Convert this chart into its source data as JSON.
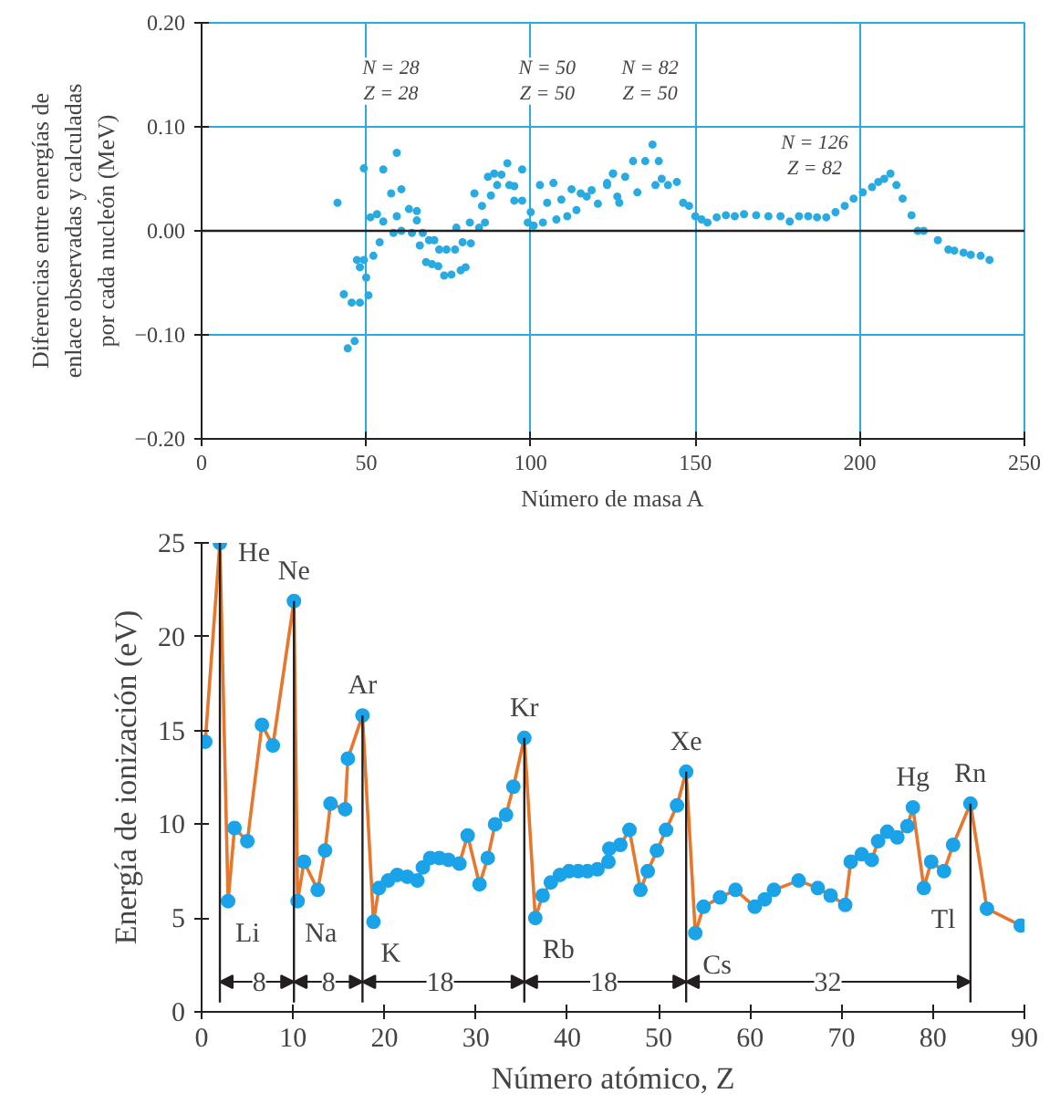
{
  "chart_data": [
    {
      "type": "scatter",
      "xlabel": "Número de masa A",
      "ylabel": "Diferencias entre energías de\nenlace observadas y calculadas\npor cada nucleón (MeV)",
      "xlim": [
        0,
        250
      ],
      "ylim": [
        -0.2,
        0.2
      ],
      "xticks": [
        0,
        50,
        100,
        150,
        200,
        250
      ],
      "yticks": [
        {
          "value": 0.2,
          "label": "0.20"
        },
        {
          "value": 0.1,
          "label": "0.10"
        },
        {
          "value": 0,
          "label": "0.00"
        },
        {
          "value": -0.1,
          "label": "−0.10"
        },
        {
          "value": -0.2,
          "label": "−0.20"
        }
      ],
      "grid": true,
      "marker": "circle",
      "ref_lines": [
        {
          "axis": "y",
          "value": 0,
          "color": "#231f20"
        }
      ],
      "annotations": [
        "N = 28\nZ = 28",
        "N = 50\nZ = 50",
        "N = 82\nZ = 50",
        "N = 126\nZ = 82"
      ],
      "series": [
        {
          "color": "#29abe2",
          "x": [
            41.3,
            43.2,
            44.4,
            45.6,
            46.5,
            47.2,
            48.1,
            48.1,
            49.3,
            49.3,
            50,
            50.7,
            51.3,
            52.2,
            53.3,
            54.1,
            55.2,
            55.2,
            57.6,
            58.3,
            59.3,
            59.3,
            60.7,
            60.7,
            63,
            63.9,
            65.4,
            65.4,
            66.3,
            67.2,
            68.2,
            69.1,
            70,
            70.7,
            71.9,
            72.2,
            73.7,
            74.4,
            75.9,
            77,
            77.4,
            78.7,
            79.3,
            80.2,
            81.5,
            81.8,
            82.9,
            84.3,
            85.2,
            86.1,
            87,
            87.9,
            88.9,
            89.8,
            91.1,
            92.9,
            93.5,
            95,
            95,
            97.4,
            97.4,
            99.1,
            100,
            100.9,
            102.8,
            103.7,
            105,
            106.9,
            107.8,
            109.3,
            111.1,
            112.4,
            113.9,
            115.2,
            117,
            118.5,
            120.4,
            123.2,
            125,
            126.3,
            123.2,
            125,
            126.9,
            128.7,
            131.1,
            132.4,
            134.8,
            137,
            137.9,
            138.9,
            139.8,
            141.7,
            144.4,
            146.3,
            148.1,
            150,
            151.9,
            153.7,
            156.5,
            159.3,
            162,
            164.8,
            168.5,
            172.2,
            175.9,
            178.7,
            181.5,
            184.3,
            187,
            189.8,
            192.6,
            195.4,
            198.1,
            200.9,
            203.7,
            205.6,
            207.4,
            209.3,
            211.1,
            213,
            215.7,
            217.6,
            219.4,
            223.7,
            226.9,
            228.7,
            231.5,
            233.7,
            236.7,
            239.4
          ],
          "values": [
            0.027,
            -0.061,
            -0.113,
            -0.069,
            -0.106,
            -0.028,
            -0.069,
            -0.035,
            0.06,
            -0.028,
            -0.045,
            -0.062,
            0.013,
            -0.024,
            0.016,
            -0.011,
            0.009,
            0.059,
            0.036,
            -0.002,
            0.075,
            0.014,
            0.04,
            0,
            0.021,
            -0.002,
            0.019,
            0.01,
            -0.014,
            -0.002,
            -0.03,
            -0.009,
            -0.032,
            -0.009,
            -0.034,
            -0.018,
            -0.043,
            -0.018,
            -0.042,
            -0.018,
            0.003,
            -0.038,
            -0.011,
            -0.035,
            0.008,
            -0.012,
            0.036,
            0.003,
            0.024,
            0.008,
            0.052,
            0.034,
            0.055,
            0.044,
            0.054,
            0.065,
            0.044,
            0.029,
            0.043,
            0.059,
            0.029,
            0.008,
            0.018,
            0.005,
            0.044,
            0.008,
            0.027,
            0.046,
            0.011,
            0.03,
            0.014,
            0.04,
            0.02,
            0.036,
            0.033,
            0.039,
            0.026,
            0.046,
            0.055,
            0.033,
            0.044,
            0.055,
            0.027,
            0.052,
            0.067,
            0.037,
            0.067,
            0.083,
            0.044,
            0.067,
            0.05,
            0.044,
            0.047,
            0.027,
            0.024,
            0.014,
            0.011,
            0.008,
            0.013,
            0.015,
            0.014,
            0.016,
            0.015,
            0.014,
            0.014,
            0.009,
            0.014,
            0.014,
            0.013,
            0.013,
            0.018,
            0.024,
            0.031,
            0.037,
            0.042,
            0.047,
            0.05,
            0.055,
            0.044,
            0.031,
            0.015,
            0,
            0,
            -0.009,
            -0.018,
            -0.019,
            -0.021,
            -0.023,
            -0.024,
            -0.028
          ]
        }
      ]
    },
    {
      "type": "line",
      "xlabel": "Número atómico, Z",
      "ylabel": "Energía de ionización (eV)",
      "xlim": [
        0,
        90
      ],
      "ylim": [
        0,
        25
      ],
      "xticks": [
        0,
        10,
        20,
        30,
        40,
        50,
        60,
        70,
        80,
        90
      ],
      "yticks": [
        0,
        5,
        10,
        15,
        20,
        25
      ],
      "marker": "circle",
      "line_style": "solid",
      "ref_lines": [
        {
          "axis": "x",
          "value": 2.0
        },
        {
          "axis": "x",
          "value": 10.1
        },
        {
          "axis": "x",
          "value": 17.6
        },
        {
          "axis": "x",
          "value": 35.3
        },
        {
          "axis": "x",
          "value": 53.0
        },
        {
          "axis": "x",
          "value": 84.1
        }
      ],
      "annotations": [
        {
          "text": "8",
          "x": 6.3,
          "y": 1.6
        },
        {
          "text": "8",
          "x": 13.9,
          "y": 1.6
        },
        {
          "text": "18",
          "x": 26.1,
          "y": 1.6
        },
        {
          "text": "18",
          "x": 44.0,
          "y": 1.6
        },
        {
          "text": "32",
          "x": 68.5,
          "y": 1.6
        },
        {
          "text": "He",
          "x": 2.0,
          "y": 25.0
        },
        {
          "text": "Ne",
          "x": 10.1,
          "y": 21.9
        },
        {
          "text": "Ar",
          "x": 17.6,
          "y": 15.8
        },
        {
          "text": "Kr",
          "x": 35.3,
          "y": 14.6
        },
        {
          "text": "Xe",
          "x": 53.0,
          "y": 12.8
        },
        {
          "text": "Hg",
          "x": 77.8,
          "y": 10.9
        },
        {
          "text": "Rn",
          "x": 84.1,
          "y": 11.1
        },
        {
          "text": "Li",
          "x": 2.9,
          "y": 5.9
        },
        {
          "text": "Na",
          "x": 10.5,
          "y": 5.9
        },
        {
          "text": "K",
          "x": 18.8,
          "y": 4.8
        },
        {
          "text": "Rb",
          "x": 36.5,
          "y": 5.0
        },
        {
          "text": "Cs",
          "x": 54.0,
          "y": 4.2
        },
        {
          "text": "Tl",
          "x": 79.0,
          "y": 6.6
        }
      ],
      "series": [
        {
          "color": "#e8772e",
          "x": [
            0.4,
            2.0,
            2.9,
            3.6,
            5.0,
            6.6,
            7.8,
            10.1,
            10.5,
            11.2,
            12.7,
            13.5,
            14.1,
            15.7,
            16.0,
            17.6,
            18.8,
            19.4,
            20.4,
            21.4,
            22.5,
            23.6,
            24.2,
            25.0,
            26.0,
            27.0,
            28.2,
            29.1,
            30.4,
            31.3,
            32.1,
            33.3,
            34.1,
            35.3,
            36.5,
            37.3,
            38.2,
            39.2,
            40.2,
            41.2,
            42.2,
            43.3,
            44.5,
            44.6,
            45.8,
            46.8,
            48.0,
            48.8,
            49.8,
            50.8,
            52.0,
            53.0,
            54.0,
            54.9,
            56.7,
            58.4,
            60.5,
            61.6,
            62.6,
            65.3,
            67.4,
            68.8,
            70.4,
            71.0,
            72.2,
            73.3,
            74.0,
            75.0,
            76.1,
            77.2,
            77.8,
            79.0,
            79.8,
            81.2,
            82.2,
            84.1,
            85.9,
            89.6
          ],
          "values": [
            14.4,
            25.0,
            5.9,
            9.8,
            9.1,
            15.3,
            14.2,
            21.9,
            5.9,
            8.0,
            6.5,
            8.6,
            11.1,
            10.8,
            13.5,
            15.8,
            4.8,
            6.6,
            7.0,
            7.3,
            7.2,
            7.0,
            7.7,
            8.2,
            8.2,
            8.1,
            7.9,
            9.4,
            6.8,
            8.2,
            10.0,
            10.5,
            12.0,
            14.6,
            5.0,
            6.2,
            6.9,
            7.3,
            7.5,
            7.5,
            7.5,
            7.6,
            8.0,
            8.7,
            8.9,
            9.7,
            6.5,
            7.5,
            8.6,
            9.7,
            11.0,
            12.8,
            4.2,
            5.6,
            6.1,
            6.5,
            5.6,
            6.0,
            6.5,
            7.0,
            6.6,
            6.2,
            5.7,
            8.0,
            8.4,
            8.1,
            9.1,
            9.6,
            9.3,
            9.9,
            10.9,
            6.6,
            8.0,
            7.5,
            8.9,
            11.1,
            5.5,
            4.6
          ],
          "colors": [
            "#1aa3e8",
            "#1aa3e8",
            "#1aa3e8",
            "#1aa3e8",
            "#1aa3e8",
            "#1aa3e8",
            "#1aa3e8",
            "#1aa3e8",
            "#1aa3e8",
            "#1aa3e8",
            "#1aa3e8",
            "#1aa3e8",
            "#1aa3e8",
            "#1aa3e8",
            "#1aa3e8",
            "#1aa3e8",
            "#1aa3e8",
            "#1aa3e8",
            "#1aa3e8",
            "#1aa3e8",
            "#1aa3e8",
            "#1aa3e8",
            "#1aa3e8",
            "#1aa3e8",
            "#1aa3e8",
            "#1aa3e8",
            "#1aa3e8",
            "#1aa3e8",
            "#1aa3e8",
            "#1aa3e8",
            "#1aa3e8",
            "#1aa3e8",
            "#1aa3e8",
            "#1aa3e8",
            "#1aa3e8",
            "#1aa3e8",
            "#1aa3e8",
            "#1aa3e8",
            "#1aa3e8",
            "#1aa3e8",
            "#1aa3e8",
            "#1aa3e8",
            "#1aa3e8",
            "#1aa3e8",
            "#1aa3e8",
            "#1aa3e8",
            "#1aa3e8",
            "#1aa3e8",
            "#1aa3e8",
            "#1aa3e8",
            "#1aa3e8",
            "#1aa3e8",
            "#1aa3e8",
            "#1aa3e8",
            "#1aa3e8",
            "#1aa3e8",
            "#1aa3e8",
            "#1aa3e8",
            "#1aa3e8",
            "#1aa3e8",
            "#1aa3e8",
            "#1aa3e8",
            "#1aa3e8",
            "#1aa3e8",
            "#1aa3e8",
            "#1aa3e8",
            "#1aa3e8",
            "#1aa3e8",
            "#1aa3e8",
            "#1aa3e8",
            "#1aa3e8",
            "#1aa3e8",
            "#1aa3e8",
            "#1aa3e8",
            "#1aa3e8",
            "#1aa3e8",
            "#1aa3e8",
            "#1aa3e8"
          ]
        }
      ]
    }
  ]
}
